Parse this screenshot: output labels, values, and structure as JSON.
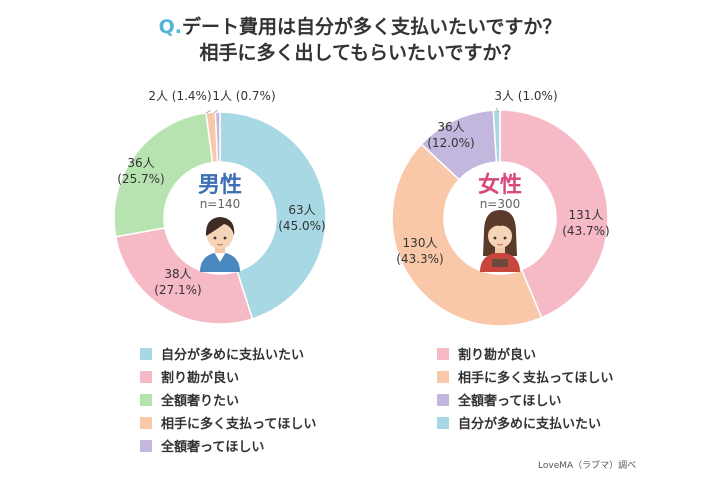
{
  "title": {
    "q_mark": "Q.",
    "line1": "デート費用は自分が多く支払いたいですか？",
    "line2": "相手に多く出してもらいたいですか？"
  },
  "chart_data": [
    {
      "type": "pie",
      "title": "男性",
      "subtitle": "n=140",
      "title_color": "#3d6fb4",
      "categories": [
        "自分が多めに支払いたい",
        "割り勘が良い",
        "全額奢りたい",
        "相手に多く支払ってほしい",
        "全額奢ってほしい"
      ],
      "counts": [
        63,
        38,
        36,
        2,
        1
      ],
      "values": [
        45.0,
        27.1,
        25.7,
        1.4,
        0.7
      ],
      "count_labels": [
        "63人",
        "38人",
        "36人",
        "2人",
        "1人"
      ],
      "value_labels": [
        "(45.0%)",
        "(27.1%)",
        "(25.7%)",
        "(1.4%)",
        "(0.7%)"
      ],
      "colors": [
        "#a8d8e3",
        "#f6b9c6",
        "#b7e3b0",
        "#f8c8a8",
        "#c4b7de"
      ],
      "legend": "bottom"
    },
    {
      "type": "pie",
      "title": "女性",
      "subtitle": "n=300",
      "title_color": "#d84a7e",
      "categories": [
        "割り勘が良い",
        "相手に多く支払ってほしい",
        "全額奢ってほしい",
        "自分が多めに支払いたい"
      ],
      "counts": [
        131,
        130,
        36,
        3
      ],
      "values": [
        43.7,
        43.3,
        12.0,
        1.0
      ],
      "count_labels": [
        "131人",
        "130人",
        "36人",
        "3人"
      ],
      "value_labels": [
        "(43.7%)",
        "(43.3%)",
        "(12.0%)",
        "(1.0%)"
      ],
      "colors": [
        "#f6b9c6",
        "#f8c8a8",
        "#c4b7de",
        "#a8d8e3"
      ],
      "legend": "bottom"
    }
  ],
  "legend_left": [
    {
      "label": "自分が多めに支払いたい",
      "color": "#a8d8e3"
    },
    {
      "label": "割り勘が良い",
      "color": "#f6b9c6"
    },
    {
      "label": "全額奢りたい",
      "color": "#b7e3b0"
    },
    {
      "label": "相手に多く支払ってほしい",
      "color": "#f8c8a8"
    },
    {
      "label": "全額奢ってほしい",
      "color": "#c4b7de"
    }
  ],
  "legend_right": [
    {
      "label": "割り勘が良い",
      "color": "#f6b9c6"
    },
    {
      "label": "相手に多く支払ってほしい",
      "color": "#f8c8a8"
    },
    {
      "label": "全額奢ってほしい",
      "color": "#c4b7de"
    },
    {
      "label": "自分が多めに支払いたい",
      "color": "#a8d8e3"
    }
  ],
  "source": "LoveMA（ラブマ）調べ",
  "icons": [
    "man-avatar-icon",
    "woman-avatar-icon"
  ]
}
